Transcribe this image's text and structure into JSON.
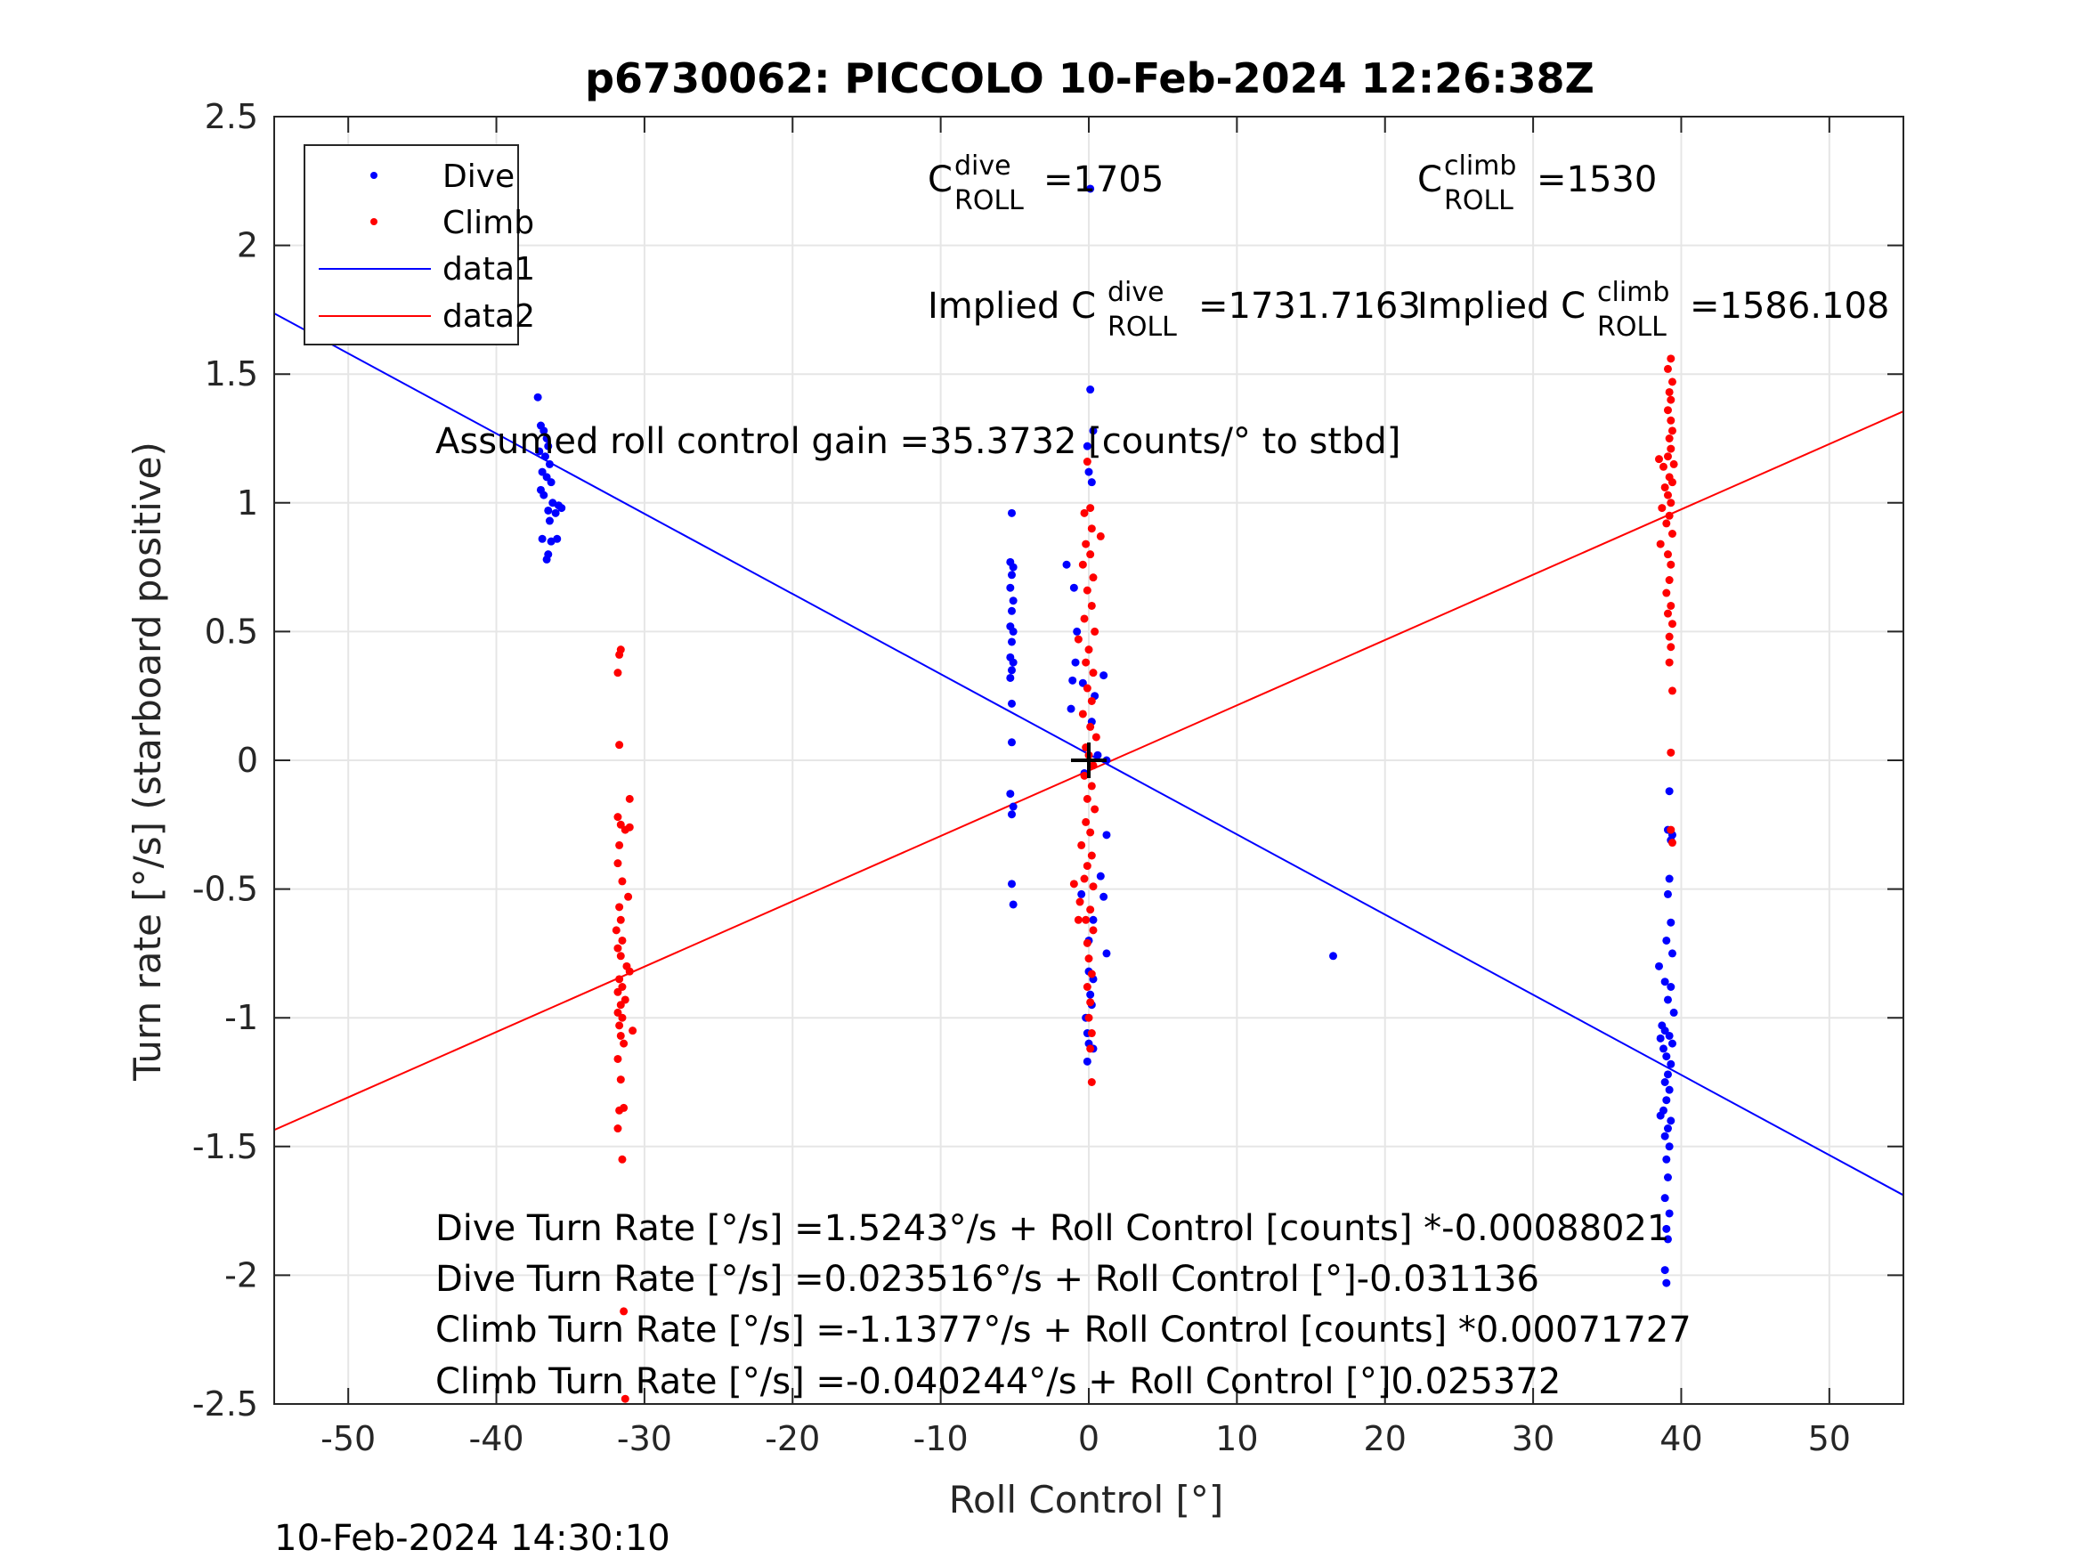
{
  "chart_data": {
    "type": "scatter",
    "title": "p6730062: PICCOLO 10-Feb-2024 12:26:38Z",
    "xlabel": "Roll Control [°]",
    "ylabel": "Turn rate [°/s] (starboard positive)",
    "xlim": [
      -55,
      55
    ],
    "ylim": [
      -2.5,
      2.5
    ],
    "xticks": [
      -50,
      -40,
      -30,
      -20,
      -10,
      0,
      10,
      20,
      30,
      40,
      50
    ],
    "yticks": [
      -2.5,
      -2,
      -1.5,
      -1,
      -0.5,
      0,
      0.5,
      1,
      1.5,
      2,
      2.5
    ],
    "grid": true,
    "legend_position": "top-left",
    "timestamp": "10-Feb-2024 14:30:10",
    "legend": [
      {
        "label": "Dive",
        "kind": "marker",
        "color": "#0000ff"
      },
      {
        "label": "Climb",
        "kind": "marker",
        "color": "#ff0000"
      },
      {
        "label": "data1",
        "kind": "line",
        "color": "#0000ff"
      },
      {
        "label": "data2",
        "kind": "line",
        "color": "#ff0000"
      }
    ],
    "annotations": {
      "c_dive": {
        "base": "C",
        "sup": "dive",
        "sub": "ROLL",
        "value": "=1705"
      },
      "c_climb": {
        "base": "C",
        "sup": "climb",
        "sub": "ROLL",
        "value": "=1530"
      },
      "implied_dive": {
        "base": "Implied C",
        "sup": "dive",
        "sub": "ROLL",
        "value": "=1731.7163"
      },
      "implied_climb": {
        "base": "Implied C",
        "sup": "climb",
        "sub": "ROLL",
        "value": "=1586.108"
      },
      "gain": "Assumed roll control gain =35.3732 [counts/° to stbd]",
      "eq1": "Dive Turn Rate [°/s] =1.5243°/s + Roll Control [counts] *-0.00088021",
      "eq2": "Dive Turn Rate [°/s] =0.023516°/s + Roll Control [°]-0.031136",
      "eq3": "Climb Turn Rate [°/s] =-1.1377°/s + Roll Control [counts] *0.00071727",
      "eq4": "Climb Turn Rate [°/s] =-0.040244°/s + Roll Control [°]0.025372"
    },
    "crosshair": {
      "x": 0,
      "y": 0
    },
    "series": [
      {
        "name": "Dive",
        "color": "#0000ff",
        "points": [
          [
            -37.2,
            1.41
          ],
          [
            -37.0,
            1.3
          ],
          [
            -36.8,
            1.28
          ],
          [
            -36.6,
            1.25
          ],
          [
            -36.5,
            1.22
          ],
          [
            -37.1,
            1.2
          ],
          [
            -36.7,
            1.18
          ],
          [
            -36.4,
            1.15
          ],
          [
            -36.9,
            1.12
          ],
          [
            -36.6,
            1.1
          ],
          [
            -36.3,
            1.08
          ],
          [
            -37.0,
            1.05
          ],
          [
            -36.8,
            1.03
          ],
          [
            -36.2,
            1.0
          ],
          [
            -35.8,
            0.99
          ],
          [
            -36.5,
            0.97
          ],
          [
            -36.0,
            0.96
          ],
          [
            -35.6,
            0.98
          ],
          [
            -36.4,
            0.93
          ],
          [
            -36.9,
            0.86
          ],
          [
            -36.3,
            0.85
          ],
          [
            -35.9,
            0.86
          ],
          [
            -36.5,
            0.8
          ],
          [
            -36.6,
            0.78
          ],
          [
            -5.2,
            0.96
          ],
          [
            -5.3,
            0.77
          ],
          [
            -5.1,
            0.75
          ],
          [
            -5.2,
            0.72
          ],
          [
            -5.3,
            0.67
          ],
          [
            -5.1,
            0.62
          ],
          [
            -5.2,
            0.58
          ],
          [
            -5.3,
            0.52
          ],
          [
            -5.1,
            0.5
          ],
          [
            -5.2,
            0.46
          ],
          [
            -5.3,
            0.4
          ],
          [
            -5.1,
            0.38
          ],
          [
            -5.2,
            0.35
          ],
          [
            -5.3,
            0.32
          ],
          [
            -5.2,
            0.22
          ],
          [
            -5.2,
            0.07
          ],
          [
            -5.3,
            -0.13
          ],
          [
            -5.1,
            -0.18
          ],
          [
            -5.2,
            -0.21
          ],
          [
            -5.2,
            -0.48
          ],
          [
            -5.1,
            -0.56
          ],
          [
            0.1,
            1.44
          ],
          [
            0.3,
            1.28
          ],
          [
            -0.1,
            1.22
          ],
          [
            0.0,
            1.12
          ],
          [
            0.2,
            1.08
          ],
          [
            -1.5,
            0.76
          ],
          [
            -1.0,
            0.67
          ],
          [
            -0.8,
            0.5
          ],
          [
            -0.9,
            0.38
          ],
          [
            -1.1,
            0.31
          ],
          [
            -1.2,
            0.2
          ],
          [
            1.0,
            0.33
          ],
          [
            0.4,
            0.25
          ],
          [
            -0.4,
            0.3
          ],
          [
            0.2,
            0.15
          ],
          [
            0.6,
            0.02
          ],
          [
            1.2,
            0.0
          ],
          [
            -0.3,
            -0.05
          ],
          [
            1.2,
            -0.29
          ],
          [
            0.8,
            -0.45
          ],
          [
            1.0,
            -0.53
          ],
          [
            -0.5,
            -0.52
          ],
          [
            0.3,
            -0.62
          ],
          [
            0.0,
            -0.7
          ],
          [
            1.2,
            -0.75
          ],
          [
            0.0,
            -0.82
          ],
          [
            0.3,
            -0.85
          ],
          [
            0.1,
            -0.91
          ],
          [
            0.2,
            -0.95
          ],
          [
            -0.2,
            -1.0
          ],
          [
            -0.1,
            -1.06
          ],
          [
            0.0,
            -1.1
          ],
          [
            0.3,
            -1.12
          ],
          [
            -0.1,
            -1.17
          ],
          [
            0.1,
            2.22
          ],
          [
            16.5,
            -0.76
          ],
          [
            39.2,
            -0.12
          ],
          [
            39.1,
            -0.27
          ],
          [
            39.4,
            -0.29
          ],
          [
            39.3,
            -0.31
          ],
          [
            39.2,
            -0.46
          ],
          [
            39.1,
            -0.52
          ],
          [
            39.3,
            -0.63
          ],
          [
            39.0,
            -0.7
          ],
          [
            38.5,
            -0.8
          ],
          [
            39.4,
            -0.75
          ],
          [
            38.9,
            -0.86
          ],
          [
            39.3,
            -0.88
          ],
          [
            39.1,
            -0.93
          ],
          [
            39.5,
            -0.98
          ],
          [
            38.7,
            -1.03
          ],
          [
            38.9,
            -1.05
          ],
          [
            38.6,
            -1.08
          ],
          [
            39.2,
            -1.07
          ],
          [
            39.4,
            -1.1
          ],
          [
            38.8,
            -1.12
          ],
          [
            39.0,
            -1.15
          ],
          [
            39.3,
            -1.18
          ],
          [
            39.1,
            -1.22
          ],
          [
            38.9,
            -1.25
          ],
          [
            39.2,
            -1.28
          ],
          [
            39.0,
            -1.32
          ],
          [
            38.8,
            -1.36
          ],
          [
            39.3,
            -1.4
          ],
          [
            38.6,
            -1.38
          ],
          [
            39.1,
            -1.43
          ],
          [
            38.9,
            -1.46
          ],
          [
            39.2,
            -1.5
          ],
          [
            39.0,
            -1.55
          ],
          [
            39.1,
            -1.62
          ],
          [
            38.9,
            -1.7
          ],
          [
            39.2,
            -1.76
          ],
          [
            39.0,
            -1.82
          ],
          [
            39.1,
            -1.86
          ],
          [
            38.9,
            -1.98
          ],
          [
            39.0,
            -2.03
          ]
        ]
      },
      {
        "name": "Climb",
        "color": "#ff0000",
        "points": [
          [
            -31.6,
            0.43
          ],
          [
            -31.7,
            0.41
          ],
          [
            -31.8,
            0.34
          ],
          [
            -31.7,
            0.06
          ],
          [
            -31.0,
            -0.15
          ],
          [
            -31.8,
            -0.22
          ],
          [
            -31.6,
            -0.25
          ],
          [
            -31.3,
            -0.27
          ],
          [
            -31.0,
            -0.26
          ],
          [
            -31.7,
            -0.33
          ],
          [
            -31.8,
            -0.4
          ],
          [
            -31.5,
            -0.47
          ],
          [
            -31.1,
            -0.53
          ],
          [
            -31.7,
            -0.57
          ],
          [
            -31.6,
            -0.62
          ],
          [
            -31.9,
            -0.66
          ],
          [
            -31.5,
            -0.7
          ],
          [
            -31.8,
            -0.73
          ],
          [
            -31.6,
            -0.76
          ],
          [
            -31.2,
            -0.8
          ],
          [
            -31.0,
            -0.82
          ],
          [
            -31.7,
            -0.85
          ],
          [
            -31.5,
            -0.88
          ],
          [
            -31.8,
            -0.9
          ],
          [
            -31.3,
            -0.93
          ],
          [
            -31.6,
            -0.95
          ],
          [
            -31.8,
            -0.98
          ],
          [
            -31.5,
            -1.0
          ],
          [
            -31.7,
            -1.03
          ],
          [
            -30.8,
            -1.05
          ],
          [
            -31.6,
            -1.07
          ],
          [
            -31.4,
            -1.1
          ],
          [
            -31.8,
            -1.16
          ],
          [
            -31.6,
            -1.24
          ],
          [
            -31.7,
            -1.36
          ],
          [
            -31.4,
            -1.35
          ],
          [
            -31.8,
            -1.43
          ],
          [
            -31.5,
            -1.55
          ],
          [
            -31.4,
            -2.14
          ],
          [
            -31.3,
            -2.48
          ],
          [
            -0.1,
            1.16
          ],
          [
            0.1,
            0.98
          ],
          [
            -0.3,
            0.96
          ],
          [
            0.2,
            0.9
          ],
          [
            0.8,
            0.87
          ],
          [
            -0.2,
            0.84
          ],
          [
            0.1,
            0.8
          ],
          [
            -0.4,
            0.76
          ],
          [
            0.3,
            0.71
          ],
          [
            -0.1,
            0.66
          ],
          [
            0.2,
            0.6
          ],
          [
            -0.3,
            0.55
          ],
          [
            0.4,
            0.5
          ],
          [
            -0.7,
            0.47
          ],
          [
            0.0,
            0.43
          ],
          [
            -0.2,
            0.38
          ],
          [
            0.3,
            0.34
          ],
          [
            -0.1,
            0.28
          ],
          [
            0.2,
            0.23
          ],
          [
            -0.4,
            0.18
          ],
          [
            0.1,
            0.13
          ],
          [
            0.5,
            0.09
          ],
          [
            -0.2,
            0.05
          ],
          [
            0.0,
            0.02
          ],
          [
            0.3,
            -0.02
          ],
          [
            -0.3,
            -0.06
          ],
          [
            0.2,
            -0.1
          ],
          [
            -0.1,
            -0.15
          ],
          [
            0.4,
            -0.19
          ],
          [
            -0.2,
            -0.24
          ],
          [
            0.1,
            -0.28
          ],
          [
            -0.5,
            -0.33
          ],
          [
            0.2,
            -0.37
          ],
          [
            -0.1,
            -0.41
          ],
          [
            -0.3,
            -0.46
          ],
          [
            0.3,
            -0.49
          ],
          [
            -1.0,
            -0.48
          ],
          [
            -0.6,
            -0.55
          ],
          [
            0.1,
            -0.58
          ],
          [
            -0.2,
            -0.62
          ],
          [
            0.3,
            -0.66
          ],
          [
            -0.7,
            -0.62
          ],
          [
            -0.1,
            -0.71
          ],
          [
            0.0,
            -0.77
          ],
          [
            0.2,
            -0.83
          ],
          [
            -0.1,
            -0.88
          ],
          [
            0.1,
            -0.94
          ],
          [
            0.0,
            -1.0
          ],
          [
            0.2,
            -1.06
          ],
          [
            0.1,
            -1.12
          ],
          [
            0.2,
            -1.25
          ],
          [
            39.3,
            1.56
          ],
          [
            39.1,
            1.52
          ],
          [
            39.4,
            1.47
          ],
          [
            39.2,
            1.43
          ],
          [
            39.3,
            1.4
          ],
          [
            39.1,
            1.36
          ],
          [
            39.3,
            1.32
          ],
          [
            39.4,
            1.28
          ],
          [
            39.2,
            1.25
          ],
          [
            39.3,
            1.21
          ],
          [
            39.1,
            1.18
          ],
          [
            38.5,
            1.17
          ],
          [
            39.5,
            1.15
          ],
          [
            38.8,
            1.14
          ],
          [
            39.2,
            1.1
          ],
          [
            39.4,
            1.08
          ],
          [
            38.9,
            1.06
          ],
          [
            39.1,
            1.03
          ],
          [
            39.3,
            1.0
          ],
          [
            38.7,
            0.98
          ],
          [
            39.2,
            0.95
          ],
          [
            39.0,
            0.92
          ],
          [
            39.4,
            0.88
          ],
          [
            38.6,
            0.84
          ],
          [
            39.1,
            0.8
          ],
          [
            39.3,
            0.76
          ],
          [
            39.2,
            0.7
          ],
          [
            39.0,
            0.65
          ],
          [
            39.3,
            0.6
          ],
          [
            39.1,
            0.57
          ],
          [
            39.4,
            0.53
          ],
          [
            39.2,
            0.48
          ],
          [
            39.3,
            0.44
          ],
          [
            39.2,
            0.38
          ],
          [
            39.4,
            0.27
          ],
          [
            39.3,
            0.03
          ],
          [
            39.3,
            -0.27
          ],
          [
            39.4,
            -0.32
          ]
        ]
      }
    ],
    "fits": [
      {
        "name": "data1",
        "color": "#0000ff",
        "intercept": 0.023516,
        "slope": -0.031136
      },
      {
        "name": "data2",
        "color": "#ff0000",
        "intercept": -0.040244,
        "slope": 0.025372
      }
    ]
  }
}
